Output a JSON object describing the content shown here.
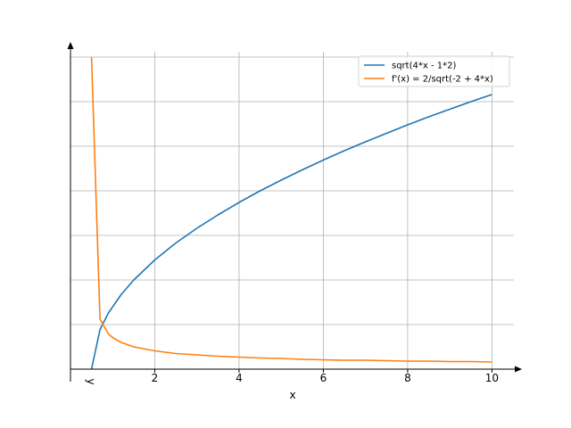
{
  "chart_data": {
    "type": "line",
    "title": "",
    "xlabel": "x",
    "ylabel": "y",
    "xlim": [
      0.0,
      10.5
    ],
    "ylim": [
      0.0,
      7.2
    ],
    "grid": true,
    "legend_position": "top-right",
    "x_ticks": [
      2,
      4,
      6,
      8,
      10
    ],
    "x_tick_labels": [
      "2",
      "4",
      "6",
      "8",
      "10"
    ],
    "y_gridlines": [
      1,
      2,
      3,
      4,
      5,
      6,
      7
    ],
    "series": [
      {
        "name": "sqrt(4*x - 1*2)",
        "color": "#1f77b4",
        "x": [
          0.5,
          0.7,
          0.9,
          1.2,
          1.5,
          2.0,
          2.5,
          3.0,
          3.5,
          4.0,
          4.5,
          5.0,
          5.5,
          6.0,
          6.5,
          7.0,
          7.5,
          8.0,
          8.5,
          9.0,
          9.5,
          10.0
        ],
        "y": [
          0.0,
          0.89,
          1.26,
          1.67,
          2.0,
          2.45,
          2.83,
          3.16,
          3.46,
          3.74,
          4.0,
          4.24,
          4.47,
          4.69,
          4.9,
          5.1,
          5.29,
          5.48,
          5.66,
          5.83,
          6.0,
          6.16
        ]
      },
      {
        "name": "f'(x) = 2/sqrt(-2 + 4*x)",
        "color": "#ff7f0e",
        "x": [
          0.5,
          0.7,
          0.9,
          1.0,
          1.2,
          1.5,
          2.0,
          2.5,
          3.0,
          3.5,
          4.0,
          4.5,
          5.0,
          5.5,
          6.0,
          6.5,
          7.0,
          7.5,
          8.0,
          8.5,
          9.0,
          9.5,
          10.0
        ],
        "y": [
          7.0,
          1.12,
          0.79,
          0.71,
          0.6,
          0.5,
          0.41,
          0.35,
          0.32,
          0.29,
          0.27,
          0.25,
          0.24,
          0.22,
          0.21,
          0.2,
          0.2,
          0.19,
          0.18,
          0.18,
          0.17,
          0.17,
          0.16
        ]
      }
    ]
  }
}
